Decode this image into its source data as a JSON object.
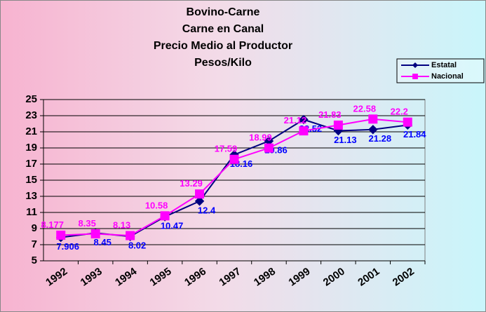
{
  "chart_data": {
    "type": "line",
    "title": [
      "Bovino-Carne",
      "Carne en Canal",
      "Precio Medio al Productor",
      "Pesos/Kilo"
    ],
    "categories": [
      "1992",
      "1993",
      "1994",
      "1995",
      "1996",
      "1997",
      "1998",
      "1999",
      "2000",
      "2001",
      "2002"
    ],
    "series": [
      {
        "name": "Estatal",
        "color": "#000080",
        "label_color": "#0000ff",
        "marker": "diamond",
        "values": [
          7.906,
          8.45,
          8.02,
          10.47,
          12.4,
          18.16,
          19.86,
          22.52,
          21.13,
          21.28,
          21.84
        ]
      },
      {
        "name": "Nacional",
        "color": "#ff00ff",
        "label_color": "#ff00ff",
        "marker": "square",
        "values": [
          8.177,
          8.35,
          8.13,
          10.58,
          13.29,
          17.59,
          18.99,
          21.12,
          21.83,
          22.58,
          22.2
        ]
      }
    ],
    "ylim": [
      5,
      25
    ],
    "yticks": [
      5,
      7,
      9,
      11,
      13,
      15,
      17,
      19,
      21,
      23,
      25
    ],
    "grid": true,
    "legend": "top-right"
  }
}
